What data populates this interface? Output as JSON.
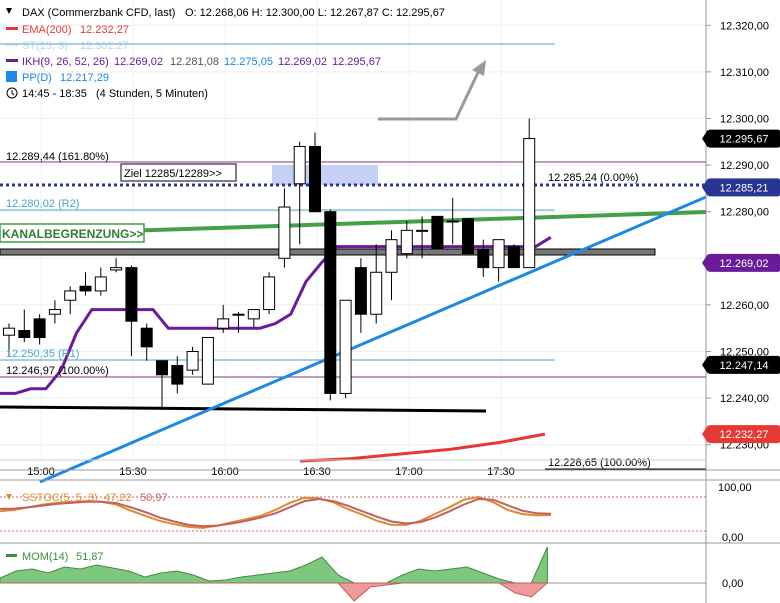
{
  "header": {
    "instrument": "DAX (Commerzbank CFD, last)",
    "ohlc": "O: 12.268,06  H: 12.300,00  L: 12.267,87  C: 12.295,67",
    "ema_label": "EMA(200)",
    "ema_value": "12.232,27",
    "st_label": "ST(15, 3)",
    "st_value": "12.302,27",
    "ikh_label": "IKH(9, 26, 52, 26)",
    "ikh_v1": "12.269,02",
    "ikh_v2": "12.281,08",
    "ikh_v3": "12.275,05",
    "ikh_v4": "12.269,02",
    "ikh_v5": "12.295,67",
    "pp_label": "PP(D)",
    "pp_value": "12.217,29",
    "time_label": "14:45 - 18:35",
    "period_label": "(4 Stunden, 5 Minuten)"
  },
  "colors": {
    "up": "#ffffff",
    "down": "#000000",
    "ema": "#e53935",
    "ikh": "#6a1b9a",
    "trend": "#1e88e5",
    "channel": "#43a047",
    "level_dotted": "#283593",
    "stoc_k": "#e08a2e",
    "stoc_d": "#c06060",
    "mom": "#6db86d",
    "mom_neg": "#e57373"
  },
  "chart_data": {
    "type": "candlestick",
    "x_ticks": [
      "15:00",
      "15:30",
      "16:00",
      "16:30",
      "17:00",
      "17:30"
    ],
    "y_ticks": [
      "12.320,00",
      "12.310,00",
      "12.300,00",
      "12.290,00",
      "12.280,00",
      "12.270,00",
      "12.260,00",
      "12.250,00",
      "12.240,00",
      "12.230,00"
    ],
    "y_tick_values": [
      12320,
      12310,
      12300,
      12290,
      12280,
      12270,
      12260,
      12250,
      12240,
      12230
    ],
    "ylim": [
      12226.5,
      12323.5
    ],
    "candles": [
      {
        "o": 12253.5,
        "h": 12256,
        "l": 12249,
        "c": 12255
      },
      {
        "o": 12254.5,
        "h": 12259,
        "l": 12252,
        "c": 12253
      },
      {
        "o": 12257,
        "h": 12258,
        "l": 12251.5,
        "c": 12253
      },
      {
        "o": 12258,
        "h": 12261,
        "l": 12256,
        "c": 12259
      },
      {
        "o": 12261,
        "h": 12264,
        "l": 12258,
        "c": 12263
      },
      {
        "o": 12264,
        "h": 12267,
        "l": 12262,
        "c": 12263
      },
      {
        "o": 12263,
        "h": 12268,
        "l": 12262,
        "c": 12266
      },
      {
        "o": 12267.5,
        "h": 12270,
        "l": 12267,
        "c": 12268
      },
      {
        "o": 12268,
        "h": 12268.5,
        "l": 12249,
        "c": 12256.5
      },
      {
        "o": 12255,
        "h": 12256,
        "l": 12248,
        "c": 12251
      },
      {
        "o": 12248,
        "h": 12248,
        "l": 12238,
        "c": 12245
      },
      {
        "o": 12247,
        "h": 12249,
        "l": 12241,
        "c": 12243
      },
      {
        "o": 12246,
        "h": 12251,
        "l": 12245,
        "c": 12250
      },
      {
        "o": 12243,
        "h": 12253,
        "l": 12243,
        "c": 12253
      },
      {
        "o": 12255,
        "h": 12260,
        "l": 12254,
        "c": 12257
      },
      {
        "o": 12258,
        "h": 12258.5,
        "l": 12254,
        "c": 12258
      },
      {
        "o": 12257,
        "h": 12259,
        "l": 12255,
        "c": 12259
      },
      {
        "o": 12259,
        "h": 12267,
        "l": 12258,
        "c": 12266
      },
      {
        "o": 12270,
        "h": 12285,
        "l": 12268,
        "c": 12281
      },
      {
        "o": 12286,
        "h": 12295,
        "l": 12273,
        "c": 12294
      },
      {
        "o": 12294,
        "h": 12297,
        "l": 12280,
        "c": 12280
      },
      {
        "o": 12280,
        "h": 12280.5,
        "l": 12239.5,
        "c": 12241
      },
      {
        "o": 12241,
        "h": 12261,
        "l": 12240,
        "c": 12261
      },
      {
        "o": 12268,
        "h": 12270,
        "l": 12254,
        "c": 12258
      },
      {
        "o": 12258,
        "h": 12273,
        "l": 12256,
        "c": 12267
      },
      {
        "o": 12267,
        "h": 12276,
        "l": 12261,
        "c": 12274
      },
      {
        "o": 12271,
        "h": 12278,
        "l": 12270,
        "c": 12276
      },
      {
        "o": 12276,
        "h": 12279,
        "l": 12270,
        "c": 12276
      },
      {
        "o": 12279,
        "h": 12279,
        "l": 12272,
        "c": 12272
      },
      {
        "o": 12278,
        "h": 12283,
        "l": 12273,
        "c": 12278
      },
      {
        "o": 12278.5,
        "h": 12278.5,
        "l": 12271,
        "c": 12271
      },
      {
        "o": 12272,
        "h": 12274,
        "l": 12266,
        "c": 12268
      },
      {
        "o": 12268,
        "h": 12274,
        "l": 12265,
        "c": 12274
      },
      {
        "o": 12272.5,
        "h": 12273,
        "l": 12268,
        "c": 12268
      },
      {
        "o": 12268,
        "h": 12300,
        "l": 12267.9,
        "c": 12295.7
      }
    ],
    "ikh_line": [
      12241,
      12241,
      12242,
      12242,
      12246,
      12254,
      12259,
      12259,
      12259,
      12259,
      12259,
      12255,
      12255,
      12255,
      12255,
      12255,
      12255,
      12255,
      12256,
      12258,
      12265,
      12269,
      12272.5,
      12272.5,
      12272.5,
      12272.5,
      12272.5,
      12272.5,
      12272.5,
      12272.5,
      12272.5,
      12272.5,
      12272.5,
      12272.5,
      12272.5,
      12272.5,
      12274.5
    ],
    "ema_points": [
      [
        12226.5,
        12226.5
      ],
      [
        12227,
        12227.5
      ],
      [
        12228,
        12228.5
      ],
      [
        12229,
        12229.5
      ],
      [
        12230.5,
        12230.5
      ],
      [
        12232.27,
        12232.27
      ]
    ],
    "price_labels": [
      {
        "text": "12.295,67",
        "value": 12295.67,
        "bg": "#000000"
      },
      {
        "text": "12.285,21",
        "value": 12285.21,
        "bg": "#283593"
      },
      {
        "text": "12.269,02",
        "value": 12269.02,
        "bg": "#6a1b9a"
      },
      {
        "text": "12.247,14",
        "value": 12247.14,
        "bg": "#000000"
      },
      {
        "text": "12.232,27",
        "value": 12232.27,
        "bg": "#e53935"
      }
    ],
    "annotations": {
      "fib_top": "12.289,44 (161.80%)",
      "fib_bottom": "12.246,97 (100.00%)",
      "r2": "12.280,02 (R2)",
      "r1": "12.250,35 (R1)",
      "target": "Ziel 12285/12289>>",
      "channel": "KANALBEGRENZUNG>>",
      "fib_right_top": "12.285,24 (0.00%)",
      "fib_right_bottom": "12.228,65 (100.00%)"
    },
    "stoc": {
      "label": "SSTOC(5, 5, 3)",
      "k": "47,22",
      "d": "50,97",
      "y_ticks": [
        "100,00",
        "0,00"
      ],
      "y_tick_values": [
        100,
        0
      ]
    },
    "mom": {
      "label": "MOM(14)",
      "value": "51,87",
      "y_ticks": [
        "0,00"
      ],
      "y_tick_values": [
        0
      ]
    }
  }
}
